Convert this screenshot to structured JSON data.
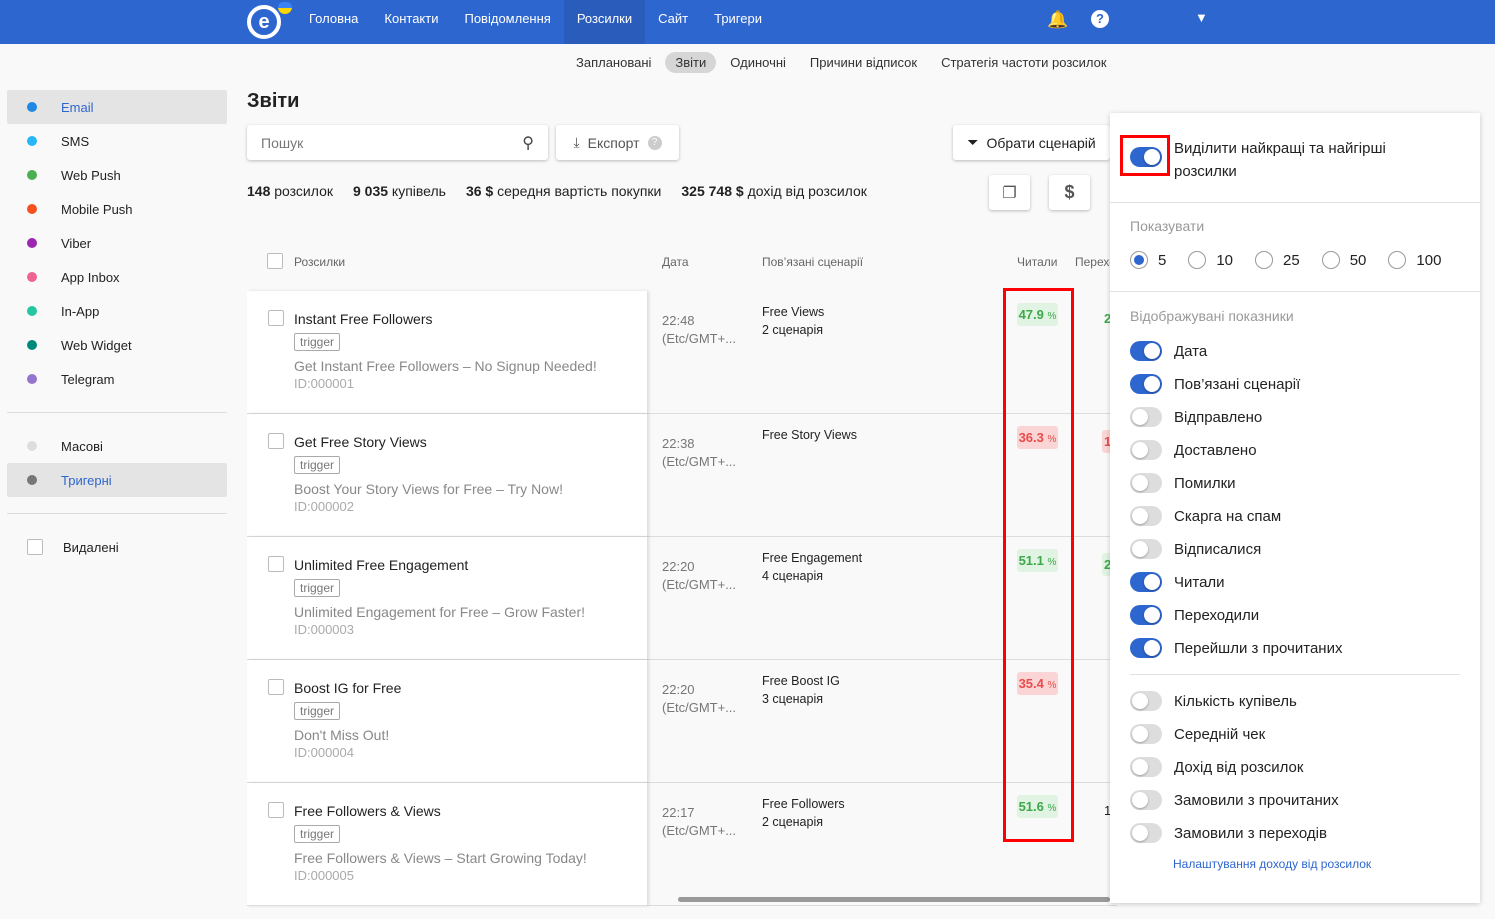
{
  "colors": {
    "brand": "#2e66cf",
    "good": "#3ea84a",
    "bad": "#e84c4c",
    "highlight": "#ff0000"
  },
  "topnav": {
    "items": [
      "Головна",
      "Контакти",
      "Повідомлення",
      "Розсилки",
      "Сайт",
      "Тригери"
    ],
    "active": "Розсилки",
    "icons": [
      "bell-icon",
      "help-icon",
      "chevron-down-icon"
    ]
  },
  "subnav": {
    "items": [
      "Заплановані",
      "Звіти",
      "Одиночні",
      "Причини відписок",
      "Стратегія частоти розсилок"
    ],
    "active": "Звіти"
  },
  "sidebar": {
    "channels": [
      {
        "label": "Email",
        "color": "#1e88e5"
      },
      {
        "label": "SMS",
        "color": "#29b6f6"
      },
      {
        "label": "Web Push",
        "color": "#4caf50"
      },
      {
        "label": "Mobile Push",
        "color": "#f4511e"
      },
      {
        "label": "Viber",
        "color": "#9c27b0"
      },
      {
        "label": "App Inbox",
        "color": "#f06292"
      },
      {
        "label": "In-App",
        "color": "#26c6a0"
      },
      {
        "label": "Web Widget",
        "color": "#00897b"
      },
      {
        "label": "Telegram",
        "color": "#9575cd"
      }
    ],
    "types": [
      {
        "label": "Масові",
        "color": "#dddddd"
      },
      {
        "label": "Тригерні",
        "color": "#777777"
      }
    ],
    "deleted": "Видалені"
  },
  "page": {
    "title": "Звіти",
    "search_placeholder": "Пошук",
    "export": "Експорт",
    "scenario": "Обрати сценарій"
  },
  "stats": [
    {
      "v": "148",
      "l": "розсилок"
    },
    {
      "v": "9 035",
      "l": "купівель"
    },
    {
      "v": "36 $",
      "l": "середня вартість покупки"
    },
    {
      "v": "325 748 $",
      "l": "дохід від розсилок"
    }
  ],
  "table": {
    "headers": [
      "Розсилки",
      "Дата",
      "Пов’язані сценарії",
      "Читали",
      "Перехо"
    ],
    "rows": [
      {
        "name": "Instant Free Followers",
        "tag": "trigger",
        "desc": "Get Instant Free Followers – No Signup Needed!",
        "id": "ID:000001",
        "time": "22:48",
        "tz": "(Etc/GMT+...",
        "sc1": "Free Views",
        "sc2": "2 сценарія",
        "read": "47.9",
        "rs": "g",
        "next": "2",
        "ns": "gt"
      },
      {
        "name": "Get Free Story Views",
        "tag": "trigger",
        "desc": "Boost Your Story Views for Free – Try Now!",
        "id": "ID:000002",
        "time": "22:38",
        "tz": "(Etc/GMT+...",
        "sc1": "Free Story Views",
        "sc2": "",
        "read": "36.3",
        "rs": "r",
        "next": "1",
        "ns": "r"
      },
      {
        "name": "Unlimited Free Engagement",
        "tag": "trigger",
        "desc": "Unlimited Engagement for Free – Grow Faster!",
        "id": "ID:000003",
        "time": "22:20",
        "tz": "(Etc/GMT+...",
        "sc1": "Free Engagement",
        "sc2": "4 сценарія",
        "read": "51.1",
        "rs": "g",
        "next": "2",
        "ns": "g"
      },
      {
        "name": "Boost IG for Free",
        "tag": "trigger",
        "desc": "Don't Miss Out!",
        "id": "ID:000004",
        "time": "22:20",
        "tz": "(Etc/GMT+...",
        "sc1": "Free Boost IG",
        "sc2": "3 сценарія",
        "read": "35.4",
        "rs": "r",
        "next": "",
        "ns": ""
      },
      {
        "name": "Free Followers & Views",
        "tag": "trigger",
        "desc": "Free Followers & Views – Start Growing Today!",
        "id": "ID:000005",
        "time": "22:17",
        "tz": "(Etc/GMT+...",
        "sc1": "Free Followers",
        "sc2": "2 сценарія",
        "read": "51.6",
        "rs": "g",
        "next": "1",
        "ns": "n"
      }
    ],
    "pct": "%"
  },
  "panel": {
    "highlight": {
      "label": "Виділити найкращі та найгірші розсилки",
      "on": true
    },
    "show_label": "Показувати",
    "show_options": [
      "5",
      "10",
      "25",
      "50",
      "100"
    ],
    "show_selected": "5",
    "metrics_label": "Відображувані показники",
    "metrics": [
      {
        "l": "Дата",
        "on": true
      },
      {
        "l": "Пов’язані сценарії",
        "on": true
      },
      {
        "l": "Відправлено",
        "on": false
      },
      {
        "l": "Доставлено",
        "on": false
      },
      {
        "l": "Помилки",
        "on": false
      },
      {
        "l": "Скарга на спам",
        "on": false
      },
      {
        "l": "Відписалися",
        "on": false
      },
      {
        "l": "Читали",
        "on": true
      },
      {
        "l": "Переходили",
        "on": true
      },
      {
        "l": "Перейшли з прочитаних",
        "on": true
      }
    ],
    "metrics2": [
      {
        "l": "Кількість купівель",
        "on": false
      },
      {
        "l": "Середній чек",
        "on": false
      },
      {
        "l": "Дохід від розсилок",
        "on": false
      },
      {
        "l": "Замовили з прочитаних",
        "on": false
      },
      {
        "l": "Замовили з переходів",
        "on": false
      }
    ],
    "link": "Налаштування доходу від розсилок"
  }
}
